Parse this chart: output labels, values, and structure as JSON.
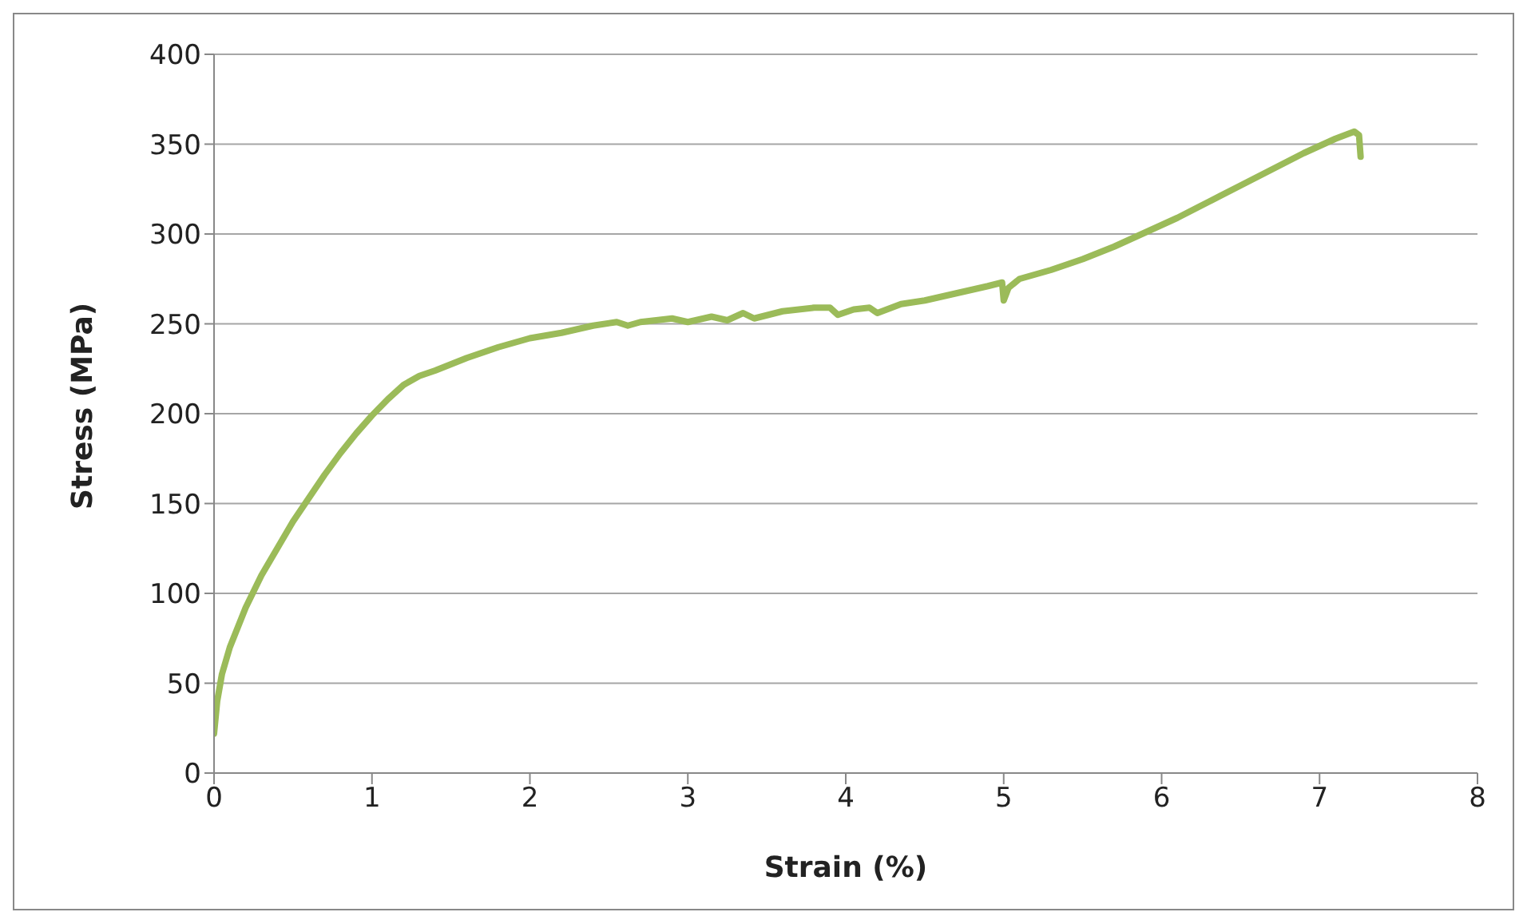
{
  "chart_data": {
    "type": "line",
    "xlabel": "Strain (%)",
    "ylabel": "Stress (MPa)",
    "x": [
      0,
      0.02,
      0.05,
      0.1,
      0.2,
      0.3,
      0.4,
      0.5,
      0.6,
      0.7,
      0.8,
      0.9,
      1.0,
      1.1,
      1.2,
      1.3,
      1.4,
      1.6,
      1.8,
      2.0,
      2.2,
      2.4,
      2.55,
      2.62,
      2.7,
      2.9,
      3.0,
      3.05,
      3.15,
      3.25,
      3.35,
      3.42,
      3.6,
      3.8,
      3.9,
      3.95,
      4.05,
      4.15,
      4.2,
      4.35,
      4.5,
      4.7,
      4.9,
      4.99,
      5.0,
      5.03,
      5.1,
      5.3,
      5.5,
      5.7,
      5.9,
      6.1,
      6.3,
      6.5,
      6.7,
      6.9,
      7.1,
      7.22,
      7.25,
      7.26
    ],
    "series": [
      {
        "color": "#9bbb59",
        "values": [
          22,
          40,
          55,
          70,
          92,
          110,
          125,
          140,
          153,
          166,
          178,
          189,
          199,
          208,
          216,
          221,
          224,
          231,
          237,
          242,
          245,
          249,
          251,
          249,
          251,
          253,
          251,
          252,
          254,
          252,
          256,
          253,
          257,
          259,
          259,
          255,
          258,
          259,
          256,
          261,
          263,
          267,
          271,
          273,
          263,
          270,
          275,
          280,
          286,
          293,
          301,
          309,
          318,
          327,
          336,
          345,
          353,
          357,
          355,
          343
        ]
      }
    ],
    "xlim": [
      0,
      8
    ],
    "xticks": [
      0,
      1,
      2,
      3,
      4,
      5,
      6,
      7,
      8
    ],
    "ylim": [
      0,
      400
    ],
    "yticks": [
      0,
      50,
      100,
      150,
      200,
      250,
      300,
      350,
      400
    ],
    "grid": "y",
    "legend": false,
    "marker": "none",
    "line_style": "solid"
  }
}
